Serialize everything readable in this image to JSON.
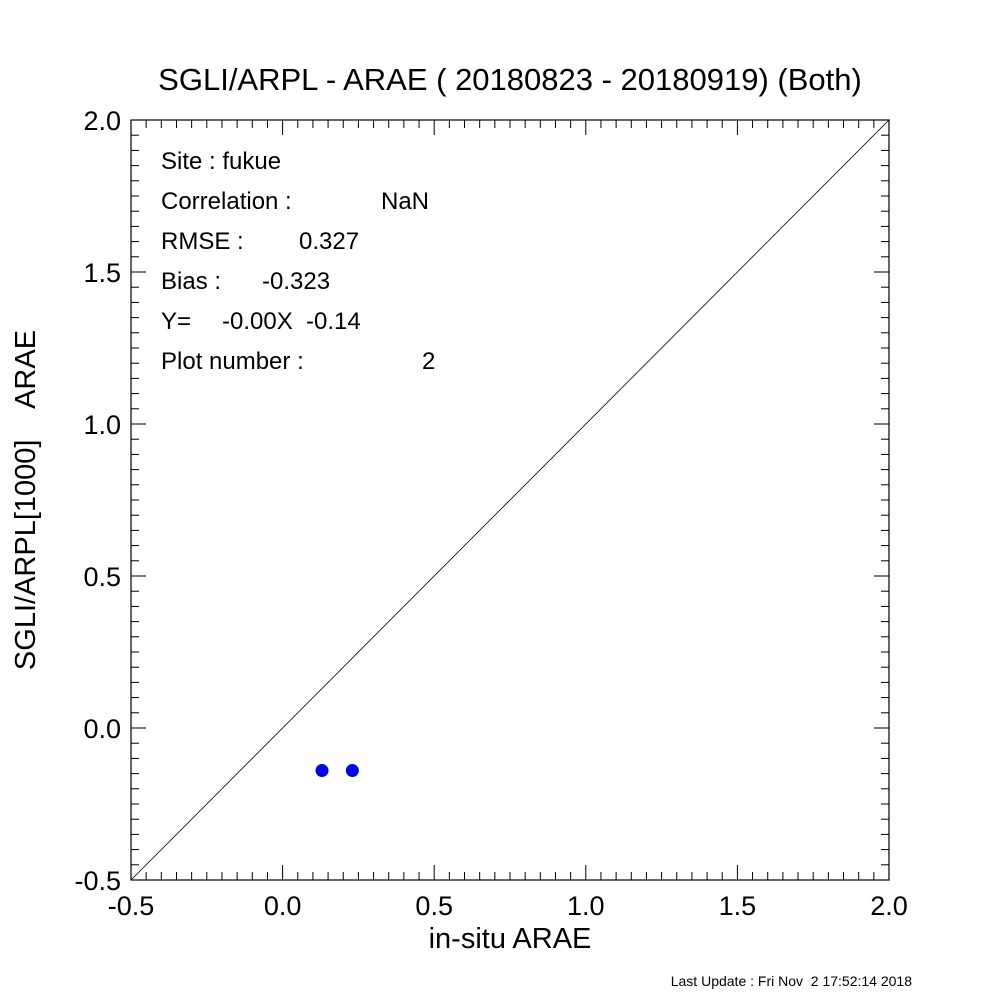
{
  "chart_data": {
    "type": "scatter",
    "title": "SGLI/ARPL - ARAE ( 20180823 - 20180919) (Both)",
    "xlabel": "in-situ ARAE",
    "ylabel": "SGLI/ARPL[1000]    ARAE",
    "xlim": [
      -0.5,
      2.0
    ],
    "ylim": [
      -0.5,
      2.0
    ],
    "xticks": [
      "-0.5",
      "0.0",
      "0.5",
      "1.0",
      "1.5",
      "2.0"
    ],
    "yticks": [
      "-0.5",
      "0.0",
      "0.5",
      "1.0",
      "1.5",
      "2.0"
    ],
    "grid": false,
    "reference_line": "1:1",
    "points": [
      {
        "x": 0.13,
        "y": -0.14
      },
      {
        "x": 0.23,
        "y": -0.14
      }
    ],
    "point_color": "#0000ee",
    "stats": {
      "site": "Site : fukue",
      "correlation_label": "Correlation :",
      "correlation_value": "NaN",
      "rmse_label": "RMSE :",
      "rmse_value": "0.327",
      "bias_label": "Bias :",
      "bias_value": "-0.323",
      "regression_label": "Y=",
      "regression_value": "-0.00X  -0.14",
      "plot_number_label": "Plot number :",
      "plot_number_value": "2"
    },
    "footer": "Last Update : Fri Nov  2 17:52:14 2018"
  }
}
